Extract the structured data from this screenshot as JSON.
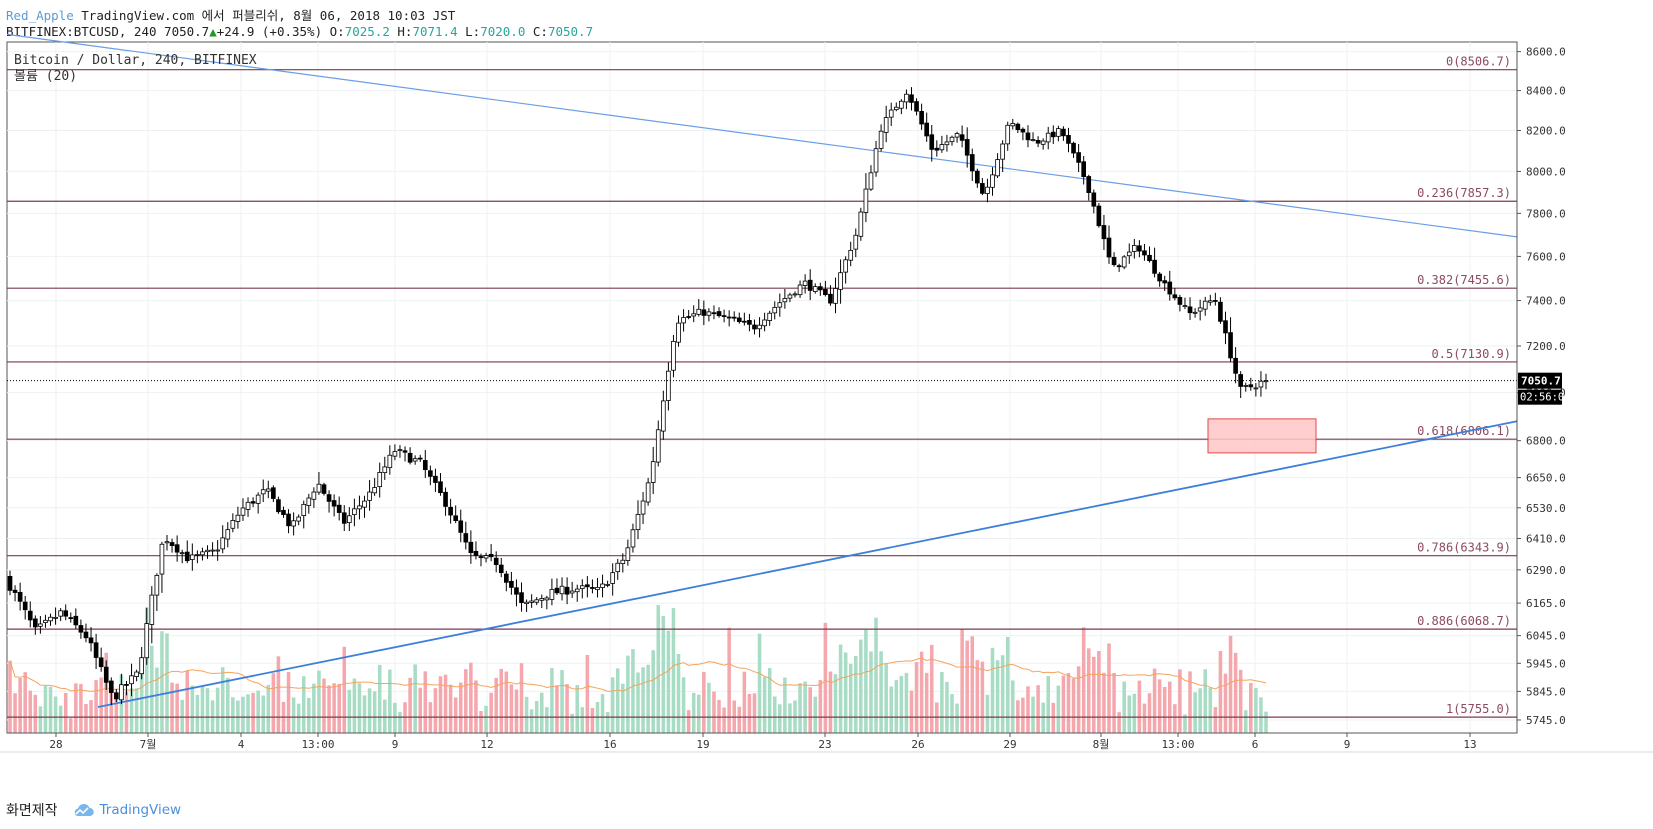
{
  "header": {
    "user": "Red_Apple",
    "published": "TradingView.com 에서 퍼블리쉬, 8월 06, 2018 10:03 JST",
    "symbol": "BITFINEX:BTCUSD, 240",
    "last": "7050.7",
    "arrow": "▲",
    "change": "+24.9 (+0.35%)",
    "o_label": "O:",
    "o": "7025.2",
    "h_label": "H:",
    "h": "7071.4",
    "l_label": "L:",
    "l": "7020.0",
    "c_label": "C:",
    "c": "7050.7"
  },
  "chart_data": {
    "type": "candlestick",
    "series_label": "Bitcoin / Dollar, 240, BITFINEX",
    "volume_label": "볼륨 (20)",
    "ylim": [
      5700,
      8650
    ],
    "y_scale": "log",
    "y_ticks": [
      8600,
      8400,
      8200,
      8000,
      7800,
      7600,
      7400,
      7200,
      7000,
      6800,
      6650,
      6530,
      6410,
      6290,
      6165,
      6045,
      5945,
      5845,
      5745
    ],
    "x_ticks": [
      "28",
      "7월",
      "4",
      "13:00",
      "9",
      "12",
      "16",
      "19",
      "23",
      "26",
      "29",
      "8월",
      "13:00",
      "6",
      "9",
      "13"
    ],
    "price_label": "7050.7",
    "countdown": "02:56:07",
    "fib_levels": [
      {
        "label": "0(8506.7)",
        "value": 8506.7
      },
      {
        "label": "0.236(7857.3)",
        "value": 7857.3
      },
      {
        "label": "0.382(7455.6)",
        "value": 7455.6
      },
      {
        "label": "0.5(7130.9)",
        "value": 7130.9
      },
      {
        "label": "0.618(6806.1)",
        "value": 6806.1
      },
      {
        "label": "0.786(6343.9)",
        "value": 6343.9
      },
      {
        "label": "0.886(6068.7)",
        "value": 6068.7
      },
      {
        "label": "1(5755.0)",
        "value": 5755.0
      }
    ],
    "price_anchors": [
      [
        6260,
        6230
      ],
      [
        6160,
        6060
      ],
      [
        6100,
        6130
      ],
      [
        6140,
        6040
      ],
      [
        5980,
        5820
      ],
      [
        5880,
        5910
      ],
      [
        6250,
        6420
      ],
      [
        6400,
        6330
      ],
      [
        6350,
        6360
      ],
      [
        6370,
        6520
      ],
      [
        6640,
        6600
      ],
      [
        6570,
        6450
      ],
      [
        6520,
        6630
      ],
      [
        6590,
        6470
      ],
      [
        6510,
        6580
      ],
      [
        6560,
        6760
      ],
      [
        6740,
        6710
      ],
      [
        6730,
        6550
      ],
      [
        6440,
        6340
      ],
      [
        6360,
        6320
      ],
      [
        6330,
        6150
      ],
      [
        6150,
        6200
      ],
      [
        6230,
        6220
      ],
      [
        6180,
        6210
      ],
      [
        6260,
        6340
      ],
      [
        6350,
        6660
      ],
      [
        6690,
        7310
      ],
      [
        7420,
        7350
      ],
      [
        7400,
        7320
      ],
      [
        7440,
        7280
      ],
      [
        7360,
        7390
      ],
      [
        7420,
        7480
      ],
      [
        7460,
        7400
      ],
      [
        7420,
        7700
      ],
      [
        7720,
        8220
      ],
      [
        8300,
        8400
      ],
      [
        8260,
        8100
      ],
      [
        8190,
        8180
      ],
      [
        8260,
        7880
      ],
      [
        7830,
        8240
      ],
      [
        8200,
        8140
      ],
      [
        8260,
        8200
      ],
      [
        8170,
        7950
      ],
      [
        7900,
        7540
      ],
      [
        7620,
        7650
      ],
      [
        7560,
        7480
      ],
      [
        7420,
        7340
      ],
      [
        7480,
        7410
      ],
      [
        7050,
        7010
      ],
      [
        7000,
        7050.7
      ]
    ],
    "trend_lines": [
      {
        "name": "descending-resistance",
        "x_from": "start",
        "y_from": 8690,
        "x_to": "end",
        "y_to": 7690
      },
      {
        "name": "ascending-support",
        "x_from": "7월",
        "y_from": 5790,
        "x_to": "end",
        "y_to": 6880
      }
    ],
    "support_zone": {
      "from": 6750,
      "to": 6890
    },
    "volume_ma": "orange line"
  },
  "footer": {
    "made_with": "화면제작",
    "brand": "TradingView"
  },
  "colors": {
    "up": "#26a69a",
    "down": "#ef5350",
    "fib": "#7b3a4f",
    "fib_text": "#8b4b63",
    "trend": "#3d7fd9",
    "zone_fill": "#ffc7c7",
    "zone_stroke": "#e04848",
    "price_label_bg": "#000000"
  }
}
